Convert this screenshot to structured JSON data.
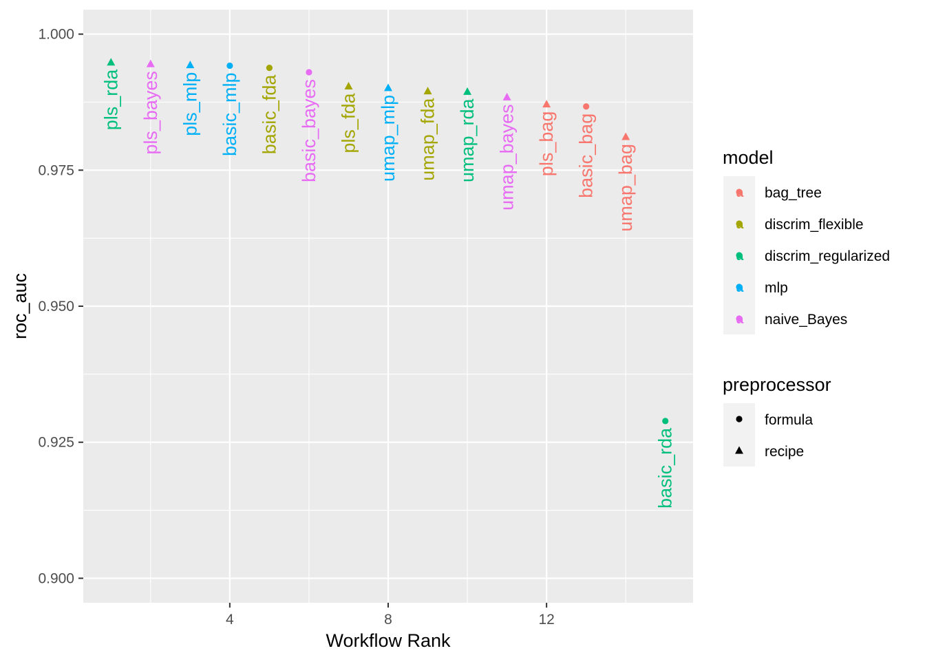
{
  "chart_data": {
    "type": "scatter",
    "title": "",
    "xlabel": "Workflow Rank",
    "ylabel": "roc_auc",
    "xlim": [
      0.3,
      15.7
    ],
    "ylim": [
      0.8955,
      1.0045
    ],
    "x_ticks": [
      4,
      8,
      12
    ],
    "y_ticks": [
      0.9,
      0.925,
      0.95,
      0.975,
      1.0
    ],
    "y_tick_labels": [
      "0.900",
      "0.925",
      "0.950",
      "0.975",
      "1.000"
    ],
    "grid": true,
    "legend_position": "right",
    "legends": {
      "color": {
        "title": "model",
        "entries": [
          {
            "label": "bag_tree",
            "color": "#F8766D",
            "glyph": "a"
          },
          {
            "label": "discrim_flexible",
            "color": "#A3A500",
            "glyph": "a"
          },
          {
            "label": "discrim_regularized",
            "color": "#00BF7D",
            "glyph": "a"
          },
          {
            "label": "mlp",
            "color": "#00B0F6",
            "glyph": "a"
          },
          {
            "label": "naive_Bayes",
            "color": "#E76BF3",
            "glyph": "a"
          }
        ]
      },
      "shape": {
        "title": "preprocessor",
        "entries": [
          {
            "label": "formula",
            "shape": "circle"
          },
          {
            "label": "recipe",
            "shape": "triangle"
          }
        ]
      }
    },
    "points": [
      {
        "rank": 1,
        "roc_auc": 0.9948,
        "label": "pls_rda",
        "model": "discrim_regularized",
        "preprocessor": "recipe"
      },
      {
        "rank": 2,
        "roc_auc": 0.9945,
        "label": "pls_bayes",
        "model": "naive_Bayes",
        "preprocessor": "recipe"
      },
      {
        "rank": 3,
        "roc_auc": 0.9943,
        "label": "pls_mlp",
        "model": "mlp",
        "preprocessor": "recipe"
      },
      {
        "rank": 4,
        "roc_auc": 0.9942,
        "label": "basic_mlp",
        "model": "mlp",
        "preprocessor": "formula"
      },
      {
        "rank": 5,
        "roc_auc": 0.9938,
        "label": "basic_fda",
        "model": "discrim_flexible",
        "preprocessor": "formula"
      },
      {
        "rank": 6,
        "roc_auc": 0.993,
        "label": "basic_bayes",
        "model": "naive_Bayes",
        "preprocessor": "formula"
      },
      {
        "rank": 7,
        "roc_auc": 0.9904,
        "label": "pls_fda",
        "model": "discrim_flexible",
        "preprocessor": "recipe"
      },
      {
        "rank": 8,
        "roc_auc": 0.9901,
        "label": "umap_mlp",
        "model": "mlp",
        "preprocessor": "recipe"
      },
      {
        "rank": 9,
        "roc_auc": 0.9895,
        "label": "umap_fda",
        "model": "discrim_flexible",
        "preprocessor": "recipe"
      },
      {
        "rank": 10,
        "roc_auc": 0.9894,
        "label": "umap_rda",
        "model": "discrim_regularized",
        "preprocessor": "recipe"
      },
      {
        "rank": 11,
        "roc_auc": 0.9884,
        "label": "umap_bayes",
        "model": "naive_Bayes",
        "preprocessor": "recipe"
      },
      {
        "rank": 12,
        "roc_auc": 0.9871,
        "label": "pls_bag",
        "model": "bag_tree",
        "preprocessor": "recipe"
      },
      {
        "rank": 13,
        "roc_auc": 0.9867,
        "label": "basic_bag",
        "model": "bag_tree",
        "preprocessor": "formula"
      },
      {
        "rank": 14,
        "roc_auc": 0.9811,
        "label": "umap_bag",
        "model": "bag_tree",
        "preprocessor": "recipe"
      },
      {
        "rank": 15,
        "roc_auc": 0.9289,
        "label": "basic_rda",
        "model": "discrim_regularized",
        "preprocessor": "formula"
      }
    ]
  },
  "colors": {
    "panel_background": "#EBEBEB",
    "grid_major": "#FFFFFF",
    "axis_text": "#4D4D4D",
    "legend_key_background": "#F2F2F2"
  }
}
